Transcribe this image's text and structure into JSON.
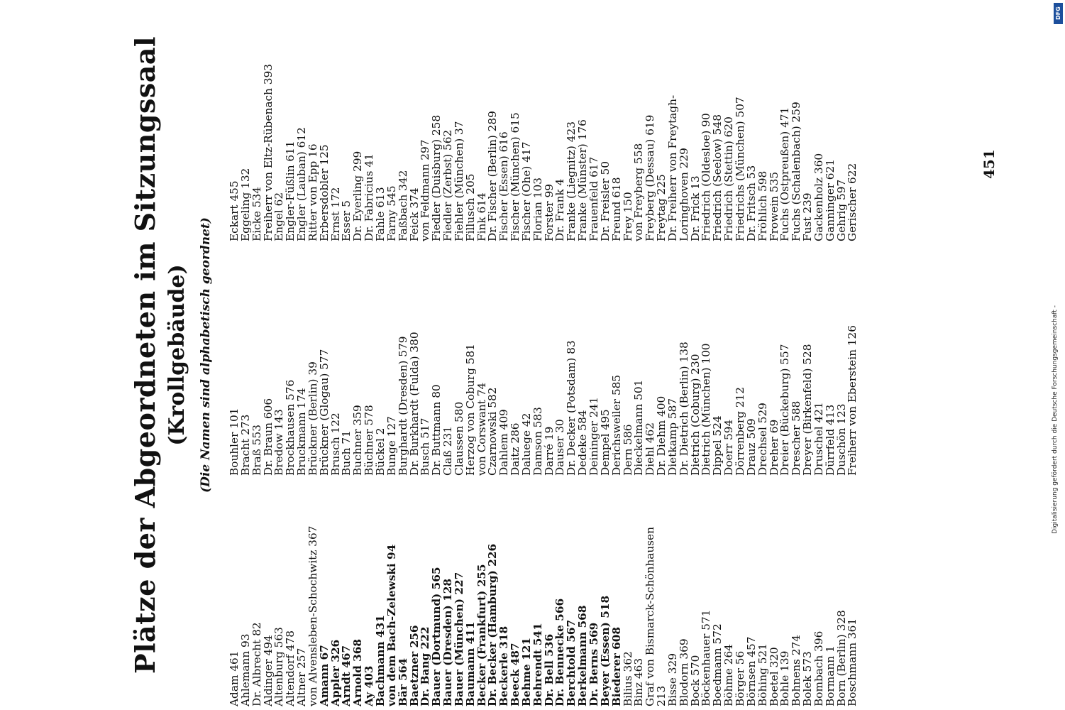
{
  "title": "Plätze der Abgeordneten im Sitzungssaal",
  "subtitle": "(Krollgebäude)",
  "note": "(Die Namen sind alphabetisch geordnet)",
  "page_number": "451",
  "funding_credit": "Digitalisierung gefördert durch die Deutsche Forschungsgemeinschaft -",
  "funding_logo": "DFG",
  "columns": [
    [
      {
        "t": "Adam 461"
      },
      {
        "t": "Ahlemann 93"
      },
      {
        "t": "Dr. Albrecht 82"
      },
      {
        "t": "Aldinger 494"
      },
      {
        "t": "Altenburg 563"
      },
      {
        "t": "Altendorf 478"
      },
      {
        "t": "Altner 257"
      },
      {
        "t": "von Alvensleben-Schochwitz 367"
      },
      {
        "t": "Amann 67",
        "b": true
      },
      {
        "t": "Appler 326",
        "b": true
      },
      {
        "t": "Arndt 467",
        "b": true
      },
      {
        "t": "Arnold 368",
        "b": true
      },
      {
        "t": "Ay 403",
        "b": true
      },
      {
        "t": "Bachmann 431",
        "b": true
      },
      {
        "t": "von dem Bach-Zelewski 94",
        "b": true
      },
      {
        "t": "Bär 564",
        "b": true
      },
      {
        "t": "Baetzner 256",
        "b": true
      },
      {
        "t": "Dr. Bang 222",
        "b": true
      },
      {
        "t": "Bauer (Dortmund) 565",
        "b": true
      },
      {
        "t": "Bauer (Dresden) 128",
        "b": true
      },
      {
        "t": "Bauer (München) 227",
        "b": true
      },
      {
        "t": "Baumann 411",
        "b": true
      },
      {
        "t": "Becker (Frankfurt) 255",
        "b": true
      },
      {
        "t": "Dr. Becker (Hamburg) 226",
        "b": true
      },
      {
        "t": "Beckerle 318",
        "b": true
      },
      {
        "t": "Beeck 487",
        "b": true
      },
      {
        "t": "Behme 121",
        "b": true
      },
      {
        "t": "Behrendt 541",
        "b": true
      },
      {
        "t": "Dr. Bell 536",
        "b": true
      },
      {
        "t": "Dr. Bennecke 566",
        "b": true
      },
      {
        "t": "Berchtold 567",
        "b": true
      },
      {
        "t": "Berkelmann 568",
        "b": true
      },
      {
        "t": "Dr. Berns 569",
        "b": true
      },
      {
        "t": "Beyer (Essen) 518",
        "b": true
      },
      {
        "t": "Biederer 608",
        "b": true
      },
      {
        "t": "Bilius 362"
      },
      {
        "t": "Binz 463"
      },
      {
        "t": "Graf von Bismarck-Schönhausen"
      },
      {
        "t": "    213"
      },
      {
        "t": "Bisse 329"
      },
      {
        "t": "Blodorn 369"
      },
      {
        "t": "Bock 570"
      },
      {
        "t": "Böckenhauer 571"
      },
      {
        "t": "Boedmann 572"
      },
      {
        "t": "Böhme 264"
      },
      {
        "t": "Börger 56"
      },
      {
        "t": "Börnsen 457"
      },
      {
        "t": "Böhing 521"
      },
      {
        "t": "Boetel 320"
      },
      {
        "t": "Bohle 139"
      },
      {
        "t": "Bohnens 274"
      },
      {
        "t": "Bolek 573"
      },
      {
        "t": "Bombach 396"
      },
      {
        "t": "Bormann 1"
      },
      {
        "t": "Born (Berlin) 328"
      },
      {
        "t": "Boschmann 361"
      }
    ],
    [
      {
        "t": "Bouhler 101"
      },
      {
        "t": "Bracht 273"
      },
      {
        "t": "Braß 553"
      },
      {
        "t": "Dr. Braun 606"
      },
      {
        "t": "Bredow 143"
      },
      {
        "t": "Brockhausen 576"
      },
      {
        "t": "Bruckmann 174"
      },
      {
        "t": "Brückner (Berlin) 39"
      },
      {
        "t": "Brückner (Glogau) 577"
      },
      {
        "t": "Brusch 122"
      },
      {
        "t": "Buch 71"
      },
      {
        "t": "Buchner 359"
      },
      {
        "t": "Büchner 578"
      },
      {
        "t": "Bückel 2"
      },
      {
        "t": "Bunge 127"
      },
      {
        "t": "Burghardt (Dresden) 579"
      },
      {
        "t": "Dr. Burkhardt (Fulda) 380"
      },
      {
        "t": "Busch 517"
      },
      {
        "t": "Dr. Buttmann 80"
      },
      {
        "t": "Claß 231"
      },
      {
        "t": "Claussen 580"
      },
      {
        "t": "Herzog von Coburg 581"
      },
      {
        "t": "von Corswant 74"
      },
      {
        "t": "Czarnowski 582"
      },
      {
        "t": "Dahlem 409"
      },
      {
        "t": "Daitz 286"
      },
      {
        "t": "Daluege 42"
      },
      {
        "t": "Damson 583"
      },
      {
        "t": "Darré 19"
      },
      {
        "t": "Dauser 30"
      },
      {
        "t": "Dr. Decker (Potsdam) 83"
      },
      {
        "t": "Dedeke 584"
      },
      {
        "t": "Deininger 241"
      },
      {
        "t": "Dempel 495"
      },
      {
        "t": "Derichsweiler 585"
      },
      {
        "t": "Dern 586"
      },
      {
        "t": "Dieckelmann 501"
      },
      {
        "t": "Diehl 462"
      },
      {
        "t": "Dr. Diehm 400"
      },
      {
        "t": "Dietkamp 587"
      },
      {
        "t": "Dr. Dietrich (Berlin) 138"
      },
      {
        "t": "Dietrich (Coburg) 230"
      },
      {
        "t": "Dietrich (München) 100"
      },
      {
        "t": "Dippel 524"
      },
      {
        "t": "Doerr 594"
      },
      {
        "t": "Dörrenberg 212"
      },
      {
        "t": "Drauz 509"
      },
      {
        "t": "Drechsel 529"
      },
      {
        "t": "Dreher 69"
      },
      {
        "t": "Dreier (Bückeburg) 557"
      },
      {
        "t": "Drescher 588"
      },
      {
        "t": "Dreyer (Birkenfeld) 528"
      },
      {
        "t": "Druschel 421"
      },
      {
        "t": "Dürrfeld 413"
      },
      {
        "t": "Duschön 123"
      },
      {
        "t": "Freiherr von Eberstein 126"
      }
    ],
    [
      {
        "t": "Eckart 455"
      },
      {
        "t": "Eggeling 132"
      },
      {
        "t": "Eicke 534"
      },
      {
        "t": "Freiherr von Eltz-Rübenach 393"
      },
      {
        "t": "Engel 62"
      },
      {
        "t": "Engler-Füßlin 611"
      },
      {
        "t": "Engler (Lauban) 612"
      },
      {
        "t": "Ritter von Epp 16"
      },
      {
        "t": "Erbersdobler 125"
      },
      {
        "t": "Ernst 172"
      },
      {
        "t": "Esser 5"
      },
      {
        "t": "Dr. Eyerling 299"
      },
      {
        "t": "Dr. Fabricius 41"
      },
      {
        "t": "Fahle 613"
      },
      {
        "t": "Farny 545"
      },
      {
        "t": "Faßbach 342"
      },
      {
        "t": "Feick 374"
      },
      {
        "t": "von Feldmann 297"
      },
      {
        "t": "Fiedler (Duisburg) 258"
      },
      {
        "t": "Fiedler (Zerbst) 562"
      },
      {
        "t": "Fiehler (München) 37"
      },
      {
        "t": "Fillusch 205"
      },
      {
        "t": "Fink 614"
      },
      {
        "t": "Dr. Fischer (Berlin) 289"
      },
      {
        "t": "Fischer (Essen) 616"
      },
      {
        "t": "Fischer (München) 615"
      },
      {
        "t": "Fischer (Ohe) 417"
      },
      {
        "t": "Florian 103"
      },
      {
        "t": "Forster 99"
      },
      {
        "t": "Dr. Frank 4"
      },
      {
        "t": "Franke (Liegnitz) 423"
      },
      {
        "t": "Franke (Münster) 176"
      },
      {
        "t": "Frauenfeld 617"
      },
      {
        "t": "Dr. Freisler 50"
      },
      {
        "t": "Freund 618"
      },
      {
        "t": "Frey 150"
      },
      {
        "t": "von Freyberg 558"
      },
      {
        "t": "Freyberg (Dessau) 619"
      },
      {
        "t": "Freytag 225"
      },
      {
        "t": "Dr. Freiherr von Freytagh-"
      },
      {
        "t": "    Loringhoven 229"
      },
      {
        "t": "Dr. Frick 13"
      },
      {
        "t": "Friedrich (Oldesloe) 90"
      },
      {
        "t": "Friedrich (Seelow) 548"
      },
      {
        "t": "Friedrich (Stettin) 620"
      },
      {
        "t": "Friedrichs (München) 507"
      },
      {
        "t": "Dr. Fritsch 53"
      },
      {
        "t": "Fröhlich 598"
      },
      {
        "t": "Frowein 535"
      },
      {
        "t": "Fuchs (Ostpreußen) 471"
      },
      {
        "t": "Fuchs (Schalenbach) 259"
      },
      {
        "t": "Fust 239"
      },
      {
        "t": "Gackenholz 360"
      },
      {
        "t": "Ganninger 621"
      },
      {
        "t": "Gehrig 597"
      },
      {
        "t": "Gerischer 622"
      }
    ]
  ]
}
